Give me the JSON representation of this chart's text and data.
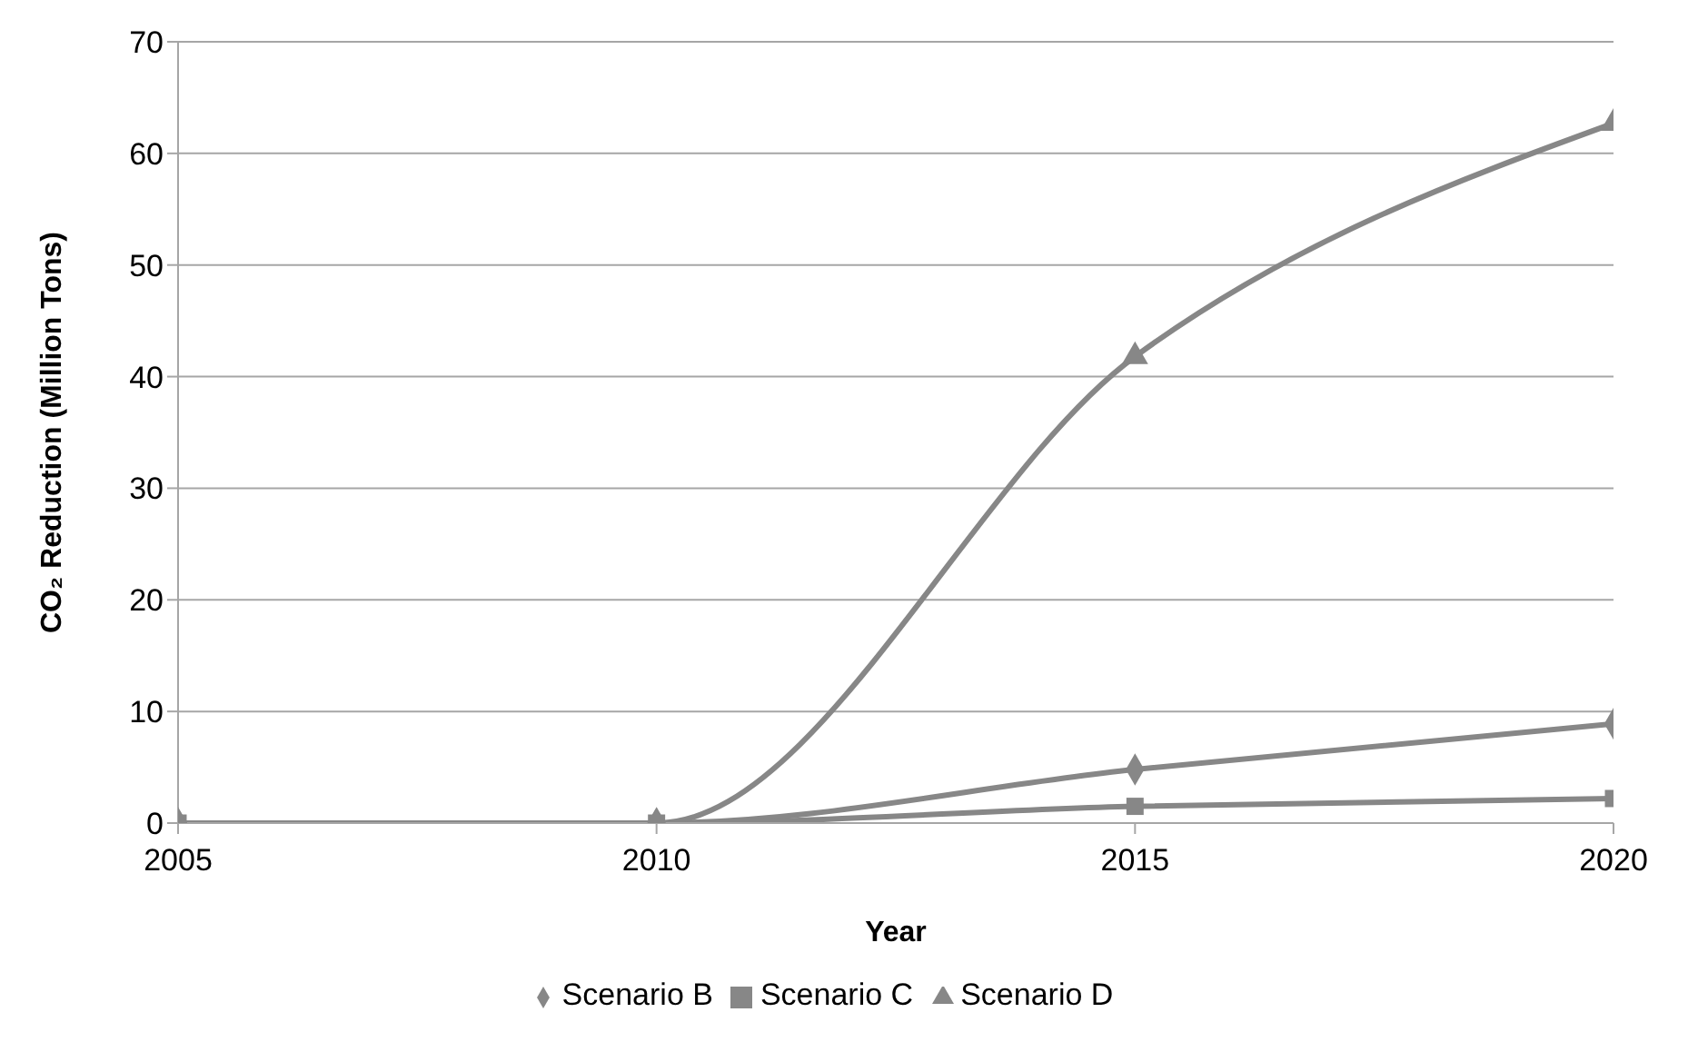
{
  "chart_data": {
    "type": "line",
    "xlabel": "Year",
    "ylabel": "CO₂ Reduction (Million Tons)",
    "x": [
      2005,
      2010,
      2015,
      2020
    ],
    "series": [
      {
        "name": "Scenario B",
        "color": "#878787",
        "marker": "diamond",
        "values": [
          0,
          0,
          4.8,
          8.9
        ]
      },
      {
        "name": "Scenario C",
        "color": "#878787",
        "marker": "square",
        "values": [
          0,
          0,
          1.5,
          2.2
        ]
      },
      {
        "name": "Scenario D",
        "color": "#878787",
        "marker": "triangle",
        "values": [
          0,
          0,
          41.8,
          62.7
        ]
      }
    ],
    "xlim": [
      2005,
      2020
    ],
    "xticks": [
      2005,
      2010,
      2015,
      2020
    ],
    "ylim": [
      0,
      70
    ],
    "yticks": [
      0,
      10,
      20,
      30,
      40,
      50,
      60,
      70
    ],
    "grid": "y",
    "legend": "bottom",
    "line_style": "solid"
  }
}
